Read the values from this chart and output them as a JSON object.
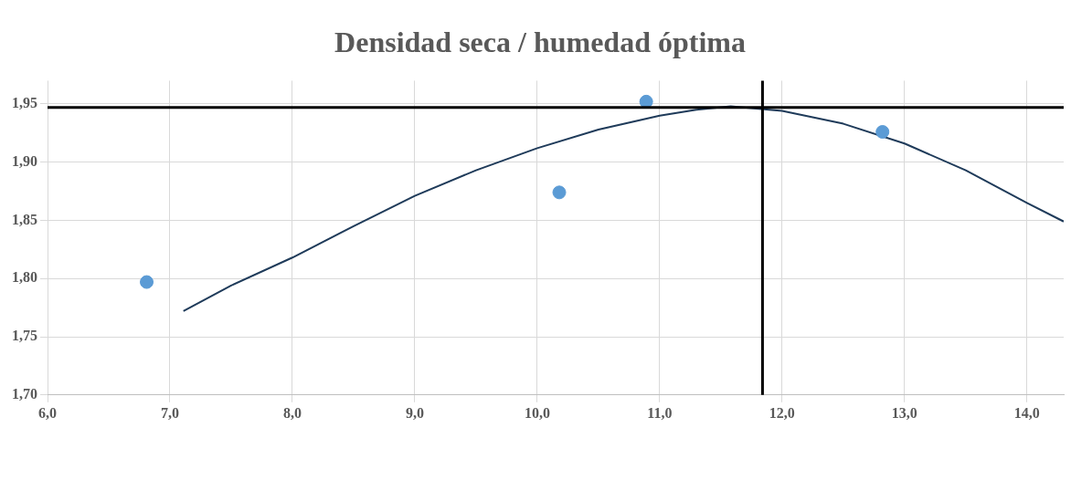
{
  "chart_data": {
    "type": "scatter",
    "title": "Densidad seca / humedad óptima",
    "xlim": [
      6,
      14.3
    ],
    "xticks": [
      {
        "value": 6,
        "label": "6,0"
      },
      {
        "value": 7,
        "label": "7,0"
      },
      {
        "value": 8,
        "label": "8,0"
      },
      {
        "value": 9,
        "label": "9,0"
      },
      {
        "value": 10,
        "label": "10,0"
      },
      {
        "value": 11,
        "label": "11,0"
      },
      {
        "value": 12,
        "label": "12,0"
      },
      {
        "value": 13,
        "label": "13,0"
      },
      {
        "value": 14,
        "label": "14,0"
      }
    ],
    "ylim": [
      1.7,
      1.97
    ],
    "yticks": [
      {
        "value": 1.7,
        "label": "1,70"
      },
      {
        "value": 1.75,
        "label": "1,75"
      },
      {
        "value": 1.8,
        "label": "1,80"
      },
      {
        "value": 1.85,
        "label": "1,85"
      },
      {
        "value": 1.9,
        "label": "1,90"
      },
      {
        "value": 1.95,
        "label": "1,95"
      }
    ],
    "grid": true,
    "legend": false,
    "marker": "circle",
    "series": [
      {
        "type": "scatter",
        "color": "#5b9bd5",
        "x": [
          6.81,
          10.18,
          10.89,
          12.82
        ],
        "values": [
          1.797,
          1.874,
          1.952,
          1.926
        ]
      },
      {
        "type": "line",
        "color": "#1f3b5a",
        "marker": "none",
        "x": [
          7.11,
          7.5,
          8.0,
          8.5,
          9.0,
          9.5,
          10.0,
          10.5,
          11.0,
          11.3,
          11.58,
          12.0,
          12.5,
          13.0,
          13.5,
          14.0,
          14.3
        ],
        "values": [
          1.772,
          1.794,
          1.818,
          1.845,
          1.871,
          1.893,
          1.912,
          1.928,
          1.94,
          1.945,
          1.948,
          1.944,
          1.933,
          1.916,
          1.893,
          1.865,
          1.849
        ]
      }
    ],
    "ref_lines": [
      {
        "axis": "y",
        "value": 1.947,
        "color": "#000000"
      },
      {
        "axis": "x",
        "value": 11.84,
        "color": "#000000"
      }
    ]
  }
}
